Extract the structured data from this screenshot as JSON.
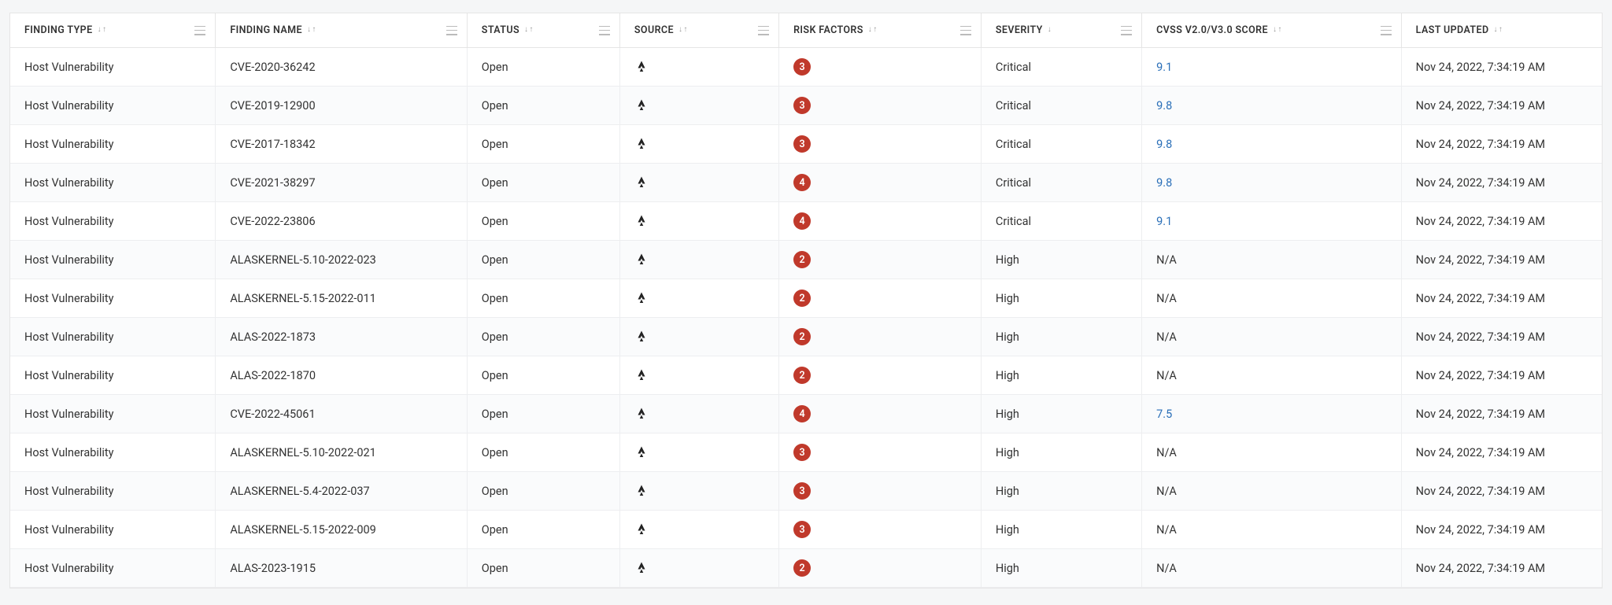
{
  "columns": {
    "finding_type": {
      "label": "FINDING TYPE",
      "sort": "both"
    },
    "finding_name": {
      "label": "FINDING NAME",
      "sort": "both"
    },
    "status": {
      "label": "STATUS",
      "sort": "both"
    },
    "source": {
      "label": "SOURCE",
      "sort": "both"
    },
    "risk_factors": {
      "label": "RISK FACTORS",
      "sort": "both"
    },
    "severity": {
      "label": "SEVERITY",
      "sort": "down"
    },
    "cvss": {
      "label": "CVSS V2.0/V3.0 SCORE",
      "sort": "both"
    },
    "last_updated": {
      "label": "LAST UPDATED",
      "sort": "both"
    }
  },
  "colors": {
    "risk_badge_bg": "#c0392b",
    "link": "#2a6fb8",
    "border": "#e5e5e5",
    "row_border": "#edeef0",
    "row_alt_bg": "#fafbfc",
    "icon_dark": "#222"
  },
  "rows": [
    {
      "type": "Host Vulnerability",
      "name": "CVE-2020-36242",
      "status": "Open",
      "risk": "3",
      "severity": "Critical",
      "score": "9.1",
      "score_link": true,
      "updated": "Nov 24, 2022, 7:34:19 AM"
    },
    {
      "type": "Host Vulnerability",
      "name": "CVE-2019-12900",
      "status": "Open",
      "risk": "3",
      "severity": "Critical",
      "score": "9.8",
      "score_link": true,
      "updated": "Nov 24, 2022, 7:34:19 AM"
    },
    {
      "type": "Host Vulnerability",
      "name": "CVE-2017-18342",
      "status": "Open",
      "risk": "3",
      "severity": "Critical",
      "score": "9.8",
      "score_link": true,
      "updated": "Nov 24, 2022, 7:34:19 AM"
    },
    {
      "type": "Host Vulnerability",
      "name": "CVE-2021-38297",
      "status": "Open",
      "risk": "4",
      "severity": "Critical",
      "score": "9.8",
      "score_link": true,
      "updated": "Nov 24, 2022, 7:34:19 AM"
    },
    {
      "type": "Host Vulnerability",
      "name": "CVE-2022-23806",
      "status": "Open",
      "risk": "4",
      "severity": "Critical",
      "score": "9.1",
      "score_link": true,
      "updated": "Nov 24, 2022, 7:34:19 AM"
    },
    {
      "type": "Host Vulnerability",
      "name": "ALASKERNEL-5.10-2022-023",
      "status": "Open",
      "risk": "2",
      "severity": "High",
      "score": "N/A",
      "score_link": false,
      "updated": "Nov 24, 2022, 7:34:19 AM"
    },
    {
      "type": "Host Vulnerability",
      "name": "ALASKERNEL-5.15-2022-011",
      "status": "Open",
      "risk": "2",
      "severity": "High",
      "score": "N/A",
      "score_link": false,
      "updated": "Nov 24, 2022, 7:34:19 AM"
    },
    {
      "type": "Host Vulnerability",
      "name": "ALAS-2022-1873",
      "status": "Open",
      "risk": "2",
      "severity": "High",
      "score": "N/A",
      "score_link": false,
      "updated": "Nov 24, 2022, 7:34:19 AM"
    },
    {
      "type": "Host Vulnerability",
      "name": "ALAS-2022-1870",
      "status": "Open",
      "risk": "2",
      "severity": "High",
      "score": "N/A",
      "score_link": false,
      "updated": "Nov 24, 2022, 7:34:19 AM"
    },
    {
      "type": "Host Vulnerability",
      "name": "CVE-2022-45061",
      "status": "Open",
      "risk": "4",
      "severity": "High",
      "score": "7.5",
      "score_link": true,
      "updated": "Nov 24, 2022, 7:34:19 AM"
    },
    {
      "type": "Host Vulnerability",
      "name": "ALASKERNEL-5.10-2022-021",
      "status": "Open",
      "risk": "3",
      "severity": "High",
      "score": "N/A",
      "score_link": false,
      "updated": "Nov 24, 2022, 7:34:19 AM"
    },
    {
      "type": "Host Vulnerability",
      "name": "ALASKERNEL-5.4-2022-037",
      "status": "Open",
      "risk": "3",
      "severity": "High",
      "score": "N/A",
      "score_link": false,
      "updated": "Nov 24, 2022, 7:34:19 AM"
    },
    {
      "type": "Host Vulnerability",
      "name": "ALASKERNEL-5.15-2022-009",
      "status": "Open",
      "risk": "3",
      "severity": "High",
      "score": "N/A",
      "score_link": false,
      "updated": "Nov 24, 2022, 7:34:19 AM"
    },
    {
      "type": "Host Vulnerability",
      "name": "ALAS-2023-1915",
      "status": "Open",
      "risk": "2",
      "severity": "High",
      "score": "N/A",
      "score_link": false,
      "updated": "Nov 24, 2022, 7:34:19 AM"
    }
  ]
}
